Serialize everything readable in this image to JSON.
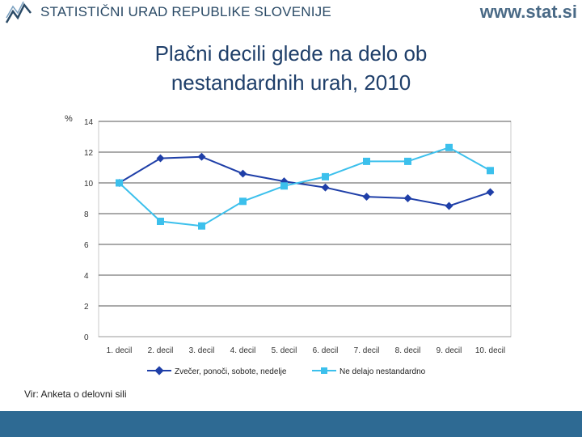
{
  "header": {
    "organization": "STATISTIČNI URAD REPUBLIKE SLOVENIJE",
    "website": "www.stat.si"
  },
  "title_line1": "Plačni decili glede na delo ob",
  "title_line2": "nestandardnih urah, 2010",
  "source": "Vir: Anketa o delovni sili",
  "colors": {
    "series1": "#1f3fa8",
    "series2": "#3cc0ec",
    "footer": "#2e6a93",
    "grid": "#555555"
  },
  "chart_data": {
    "type": "line",
    "title": "Plačni decili glede na delo ob nestandardnih urah, 2010",
    "ylabel": "%",
    "xlabel": "",
    "ylim": [
      0,
      14
    ],
    "yticks": [
      0,
      2,
      4,
      6,
      8,
      10,
      12,
      14
    ],
    "categories": [
      "1. decil",
      "2. decil",
      "3. decil",
      "4. decil",
      "5. decil",
      "6. decil",
      "7. decil",
      "8. decil",
      "9. decil",
      "10. decil"
    ],
    "series": [
      {
        "name": "Zvečer, ponoči, sobote, nedelje",
        "marker": "diamond",
        "values": [
          10.0,
          11.6,
          11.7,
          10.6,
          10.1,
          9.7,
          9.1,
          9.0,
          8.5,
          9.4
        ]
      },
      {
        "name": "Ne delajo nestandardno",
        "marker": "square",
        "values": [
          10.0,
          7.5,
          7.2,
          8.8,
          9.8,
          10.4,
          11.4,
          11.4,
          12.3,
          10.8
        ]
      }
    ],
    "legend_position": "bottom"
  }
}
